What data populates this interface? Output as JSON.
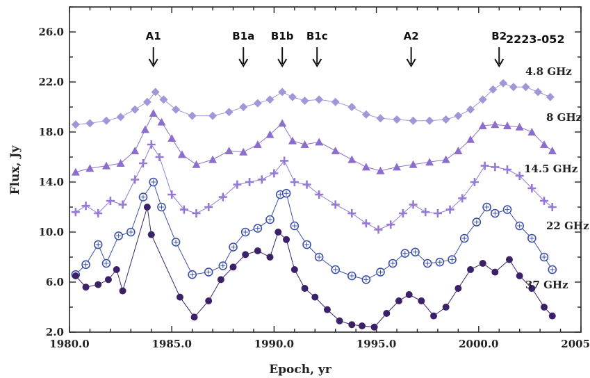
{
  "chart_data": {
    "type": "scatter",
    "title": "2223-052",
    "xlabel": "Epoch, yr",
    "ylabel": "Flux, Jy",
    "xlim": [
      1980.0,
      2005.0
    ],
    "ylim": [
      2.0,
      28.0
    ],
    "xticks": [
      "1980.0",
      "1985.0",
      "1990.0",
      "1995.0",
      "2000.0",
      "2005.0"
    ],
    "yticks": [
      "2.0",
      "6.0",
      "10.0",
      "14.0",
      "18.0",
      "22.0",
      "26.0"
    ],
    "events": [
      {
        "label": "A1",
        "x": 1984.1
      },
      {
        "label": "B1a",
        "x": 1988.5
      },
      {
        "label": "B1b",
        "x": 1990.4
      },
      {
        "label": "B1c",
        "x": 1992.1
      },
      {
        "label": "A2",
        "x": 1996.7
      },
      {
        "label": "B2",
        "x": 2001.0
      }
    ],
    "series": [
      {
        "name": "4.8 GHz",
        "color": "#9e97d8",
        "marker": "diamond",
        "x": [
          1980.3,
          1981.0,
          1981.8,
          1982.5,
          1983.2,
          1983.8,
          1984.2,
          1984.6,
          1985.2,
          1986.0,
          1987.0,
          1987.8,
          1988.5,
          1989.2,
          1989.8,
          1990.4,
          1990.9,
          1991.5,
          1992.2,
          1993.0,
          1993.8,
          1994.5,
          1995.2,
          1996.0,
          1996.8,
          1997.6,
          1998.4,
          1999.0,
          1999.6,
          2000.2,
          2000.7,
          2001.2,
          2001.7,
          2002.3,
          2002.9,
          2003.5
        ],
        "y": [
          18.6,
          18.7,
          18.9,
          19.2,
          19.8,
          20.4,
          21.2,
          20.6,
          19.8,
          19.3,
          19.3,
          19.6,
          20.0,
          20.3,
          20.6,
          21.2,
          20.8,
          20.5,
          20.6,
          20.4,
          20.0,
          19.4,
          19.1,
          19.0,
          18.9,
          18.9,
          19.0,
          19.3,
          19.8,
          20.6,
          21.4,
          21.9,
          21.6,
          21.6,
          21.2,
          20.8
        ]
      },
      {
        "name": "8 GHz",
        "color": "#8c6fcd",
        "marker": "triangle",
        "x": [
          1980.3,
          1981.0,
          1981.8,
          1982.5,
          1983.2,
          1983.7,
          1984.1,
          1984.5,
          1985.0,
          1985.5,
          1986.2,
          1987.0,
          1987.8,
          1988.5,
          1989.2,
          1989.8,
          1990.4,
          1990.9,
          1991.5,
          1992.2,
          1993.0,
          1993.8,
          1994.5,
          1995.2,
          1996.0,
          1996.8,
          1997.6,
          1998.4,
          1999.0,
          1999.6,
          2000.2,
          2000.8,
          2001.4,
          2002.0,
          2002.6,
          2003.2,
          2003.6
        ],
        "y": [
          14.8,
          15.1,
          15.3,
          15.5,
          16.5,
          18.2,
          19.5,
          18.8,
          17.5,
          16.2,
          15.4,
          15.8,
          16.5,
          16.4,
          17.0,
          17.8,
          18.7,
          17.3,
          17.0,
          17.2,
          16.5,
          15.8,
          15.2,
          14.9,
          15.2,
          15.4,
          15.6,
          15.8,
          16.5,
          17.4,
          18.5,
          18.6,
          18.5,
          18.4,
          18.0,
          17.0,
          16.5
        ]
      },
      {
        "name": "14.5 GHz",
        "color": "#9579d6",
        "marker": "plus",
        "x": [
          1980.3,
          1980.8,
          1981.4,
          1982.0,
          1982.6,
          1983.2,
          1983.6,
          1984.0,
          1984.4,
          1985.0,
          1985.6,
          1986.2,
          1986.8,
          1987.5,
          1988.2,
          1988.8,
          1989.4,
          1990.0,
          1990.5,
          1991.0,
          1991.6,
          1992.2,
          1993.0,
          1993.8,
          1994.5,
          1995.1,
          1995.7,
          1996.3,
          1996.8,
          1997.4,
          1998.0,
          1998.6,
          1999.2,
          1999.8,
          2000.3,
          2000.8,
          2001.4,
          2002.0,
          2002.6,
          2003.2,
          2003.6
        ],
        "y": [
          11.6,
          12.1,
          11.5,
          12.5,
          12.2,
          14.2,
          15.5,
          17.0,
          16.0,
          13.0,
          11.8,
          11.5,
          12.0,
          12.8,
          13.8,
          14.0,
          14.2,
          14.7,
          15.7,
          14.0,
          13.8,
          13.0,
          12.2,
          11.5,
          10.7,
          10.2,
          10.6,
          11.5,
          12.2,
          11.6,
          11.5,
          11.8,
          12.7,
          14.0,
          15.3,
          15.2,
          15.0,
          14.5,
          13.5,
          12.5,
          12.0
        ]
      },
      {
        "name": "22 GHz",
        "color": "#3a4fa8",
        "marker": "circle-open",
        "x": [
          1980.3,
          1980.8,
          1981.4,
          1981.8,
          1982.4,
          1983.0,
          1983.6,
          1984.1,
          1984.5,
          1985.2,
          1986.0,
          1986.8,
          1987.5,
          1988.0,
          1988.6,
          1989.2,
          1989.8,
          1990.3,
          1990.6,
          1991.0,
          1991.6,
          1992.2,
          1993.0,
          1993.8,
          1994.5,
          1995.2,
          1995.8,
          1996.4,
          1996.9,
          1997.5,
          1998.1,
          1998.7,
          1999.3,
          1999.9,
          2000.4,
          2000.8,
          2001.4,
          2002.0,
          2002.6,
          2003.2,
          2003.6
        ],
        "y": [
          6.6,
          7.4,
          9.0,
          7.5,
          9.7,
          10.0,
          12.8,
          14.0,
          12.0,
          9.2,
          6.6,
          6.8,
          7.3,
          8.8,
          10.0,
          10.3,
          11.0,
          13.0,
          13.1,
          10.5,
          9.0,
          8.0,
          7.0,
          6.5,
          6.2,
          6.8,
          7.5,
          8.3,
          8.4,
          7.5,
          7.6,
          7.8,
          9.5,
          10.8,
          12.0,
          11.5,
          11.8,
          10.5,
          9.5,
          8.0,
          7.0
        ]
      },
      {
        "name": "37 GHz",
        "color": "#3b2168",
        "marker": "circle-filled",
        "x": [
          1980.3,
          1980.8,
          1981.4,
          1981.9,
          1982.3,
          1982.6,
          1983.8,
          1984.0,
          1985.4,
          1986.1,
          1986.8,
          1987.4,
          1988.0,
          1988.6,
          1989.2,
          1989.8,
          1990.2,
          1990.6,
          1991.0,
          1991.5,
          1992.0,
          1992.6,
          1993.2,
          1993.8,
          1994.3,
          1994.9,
          1995.5,
          1996.1,
          1996.6,
          1997.2,
          1997.8,
          1998.4,
          1999.0,
          1999.6,
          2000.2,
          2000.8,
          2001.5,
          2002.0,
          2002.6,
          2003.2,
          2003.6
        ],
        "y": [
          6.5,
          5.6,
          5.8,
          6.2,
          7.0,
          5.3,
          12.0,
          9.8,
          4.8,
          3.2,
          4.5,
          6.2,
          7.2,
          8.2,
          8.5,
          8.0,
          10.0,
          9.4,
          7.0,
          5.5,
          4.8,
          3.8,
          2.9,
          2.6,
          2.5,
          2.4,
          3.5,
          4.5,
          5.0,
          4.5,
          3.3,
          4.0,
          5.5,
          7.0,
          7.5,
          6.8,
          7.8,
          6.5,
          5.5,
          4.0,
          3.3
        ]
      }
    ]
  }
}
